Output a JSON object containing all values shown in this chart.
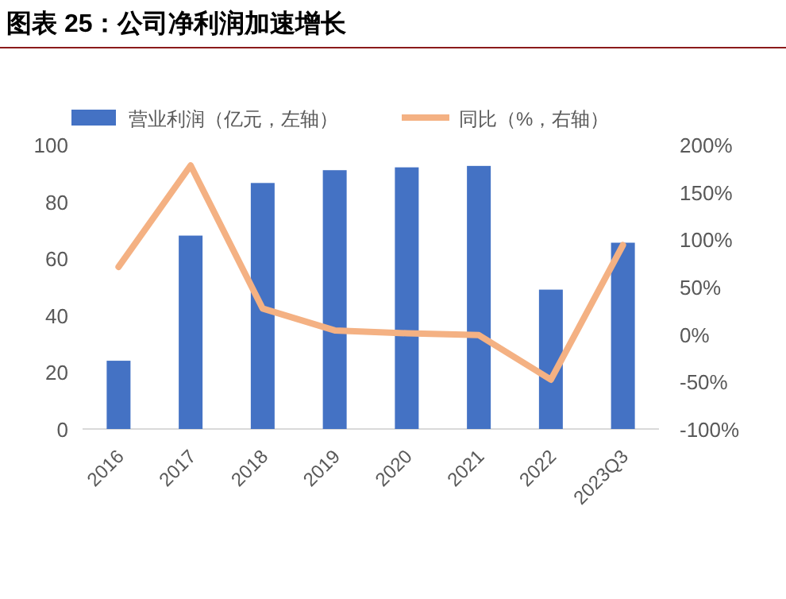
{
  "chart_data": {
    "type": "bar",
    "title": "图表 25：公司净利润加速增长",
    "categories": [
      "2016",
      "2017",
      "2018",
      "2019",
      "2020",
      "2021",
      "2022",
      "2023Q3"
    ],
    "series": [
      {
        "name": "营业利润（亿元，左轴）",
        "color": "#4472c4",
        "values": [
          24,
          68,
          86.5,
          91,
          92,
          92.5,
          49,
          65.5
        ]
      },
      {
        "name": "同比（%，右轴）",
        "type": "line",
        "axis": "y2",
        "color": "#f4b183",
        "values": [
          71,
          178,
          27,
          4,
          1,
          -1,
          -48,
          94
        ]
      }
    ],
    "ylim": [
      0,
      100
    ],
    "yticks": [
      0,
      20,
      40,
      60,
      80,
      100
    ],
    "y2lim": [
      -100,
      200
    ],
    "y2ticks": [
      {
        "value": -100,
        "label": "-100%"
      },
      {
        "value": -50,
        "label": "-50%"
      },
      {
        "value": 0,
        "label": "0%"
      },
      {
        "value": 50,
        "label": "50%"
      },
      {
        "value": 100,
        "label": "100%"
      },
      {
        "value": 150,
        "label": "150%"
      },
      {
        "value": 200,
        "label": "200%"
      }
    ],
    "legend": "top",
    "grid": false
  }
}
